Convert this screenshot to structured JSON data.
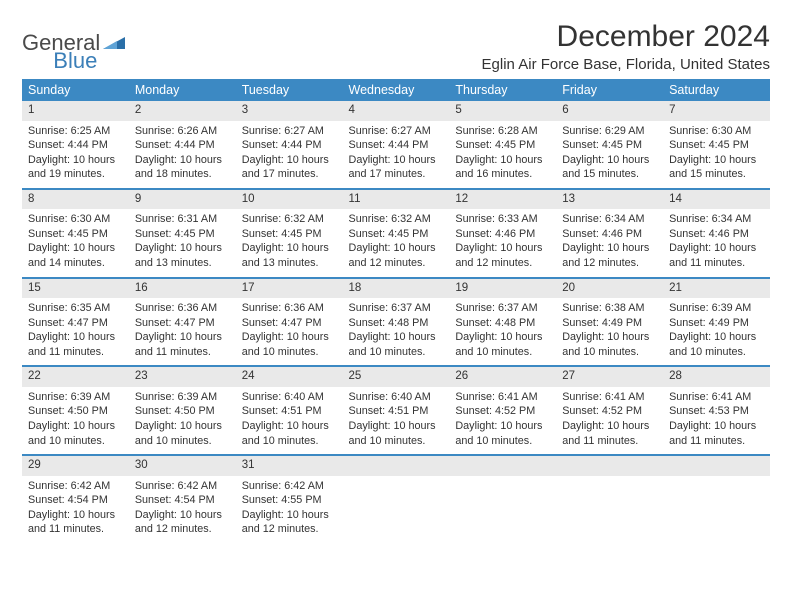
{
  "logo": {
    "word1": "General",
    "word2": "Blue",
    "color1": "#4a4a4a",
    "color2": "#3b7fb8"
  },
  "title": "December 2024",
  "subtitle": "Eglin Air Force Base, Florida, United States",
  "headers": [
    "Sunday",
    "Monday",
    "Tuesday",
    "Wednesday",
    "Thursday",
    "Friday",
    "Saturday"
  ],
  "colors": {
    "header_bg": "#3c89c3",
    "header_fg": "#ffffff",
    "rule": "#3c89c3",
    "daybar_bg": "#e9e9e9",
    "empty_bg": "#f1f1f1",
    "text": "#333333"
  },
  "labels": {
    "sunrise": "Sunrise:",
    "sunset": "Sunset:",
    "daylight": "Daylight:"
  },
  "days": [
    {
      "n": "1",
      "sr": "6:25 AM",
      "ss": "4:44 PM",
      "dl": "10 hours and 19 minutes."
    },
    {
      "n": "2",
      "sr": "6:26 AM",
      "ss": "4:44 PM",
      "dl": "10 hours and 18 minutes."
    },
    {
      "n": "3",
      "sr": "6:27 AM",
      "ss": "4:44 PM",
      "dl": "10 hours and 17 minutes."
    },
    {
      "n": "4",
      "sr": "6:27 AM",
      "ss": "4:44 PM",
      "dl": "10 hours and 17 minutes."
    },
    {
      "n": "5",
      "sr": "6:28 AM",
      "ss": "4:45 PM",
      "dl": "10 hours and 16 minutes."
    },
    {
      "n": "6",
      "sr": "6:29 AM",
      "ss": "4:45 PM",
      "dl": "10 hours and 15 minutes."
    },
    {
      "n": "7",
      "sr": "6:30 AM",
      "ss": "4:45 PM",
      "dl": "10 hours and 15 minutes."
    },
    {
      "n": "8",
      "sr": "6:30 AM",
      "ss": "4:45 PM",
      "dl": "10 hours and 14 minutes."
    },
    {
      "n": "9",
      "sr": "6:31 AM",
      "ss": "4:45 PM",
      "dl": "10 hours and 13 minutes."
    },
    {
      "n": "10",
      "sr": "6:32 AM",
      "ss": "4:45 PM",
      "dl": "10 hours and 13 minutes."
    },
    {
      "n": "11",
      "sr": "6:32 AM",
      "ss": "4:45 PM",
      "dl": "10 hours and 12 minutes."
    },
    {
      "n": "12",
      "sr": "6:33 AM",
      "ss": "4:46 PM",
      "dl": "10 hours and 12 minutes."
    },
    {
      "n": "13",
      "sr": "6:34 AM",
      "ss": "4:46 PM",
      "dl": "10 hours and 12 minutes."
    },
    {
      "n": "14",
      "sr": "6:34 AM",
      "ss": "4:46 PM",
      "dl": "10 hours and 11 minutes."
    },
    {
      "n": "15",
      "sr": "6:35 AM",
      "ss": "4:47 PM",
      "dl": "10 hours and 11 minutes."
    },
    {
      "n": "16",
      "sr": "6:36 AM",
      "ss": "4:47 PM",
      "dl": "10 hours and 11 minutes."
    },
    {
      "n": "17",
      "sr": "6:36 AM",
      "ss": "4:47 PM",
      "dl": "10 hours and 10 minutes."
    },
    {
      "n": "18",
      "sr": "6:37 AM",
      "ss": "4:48 PM",
      "dl": "10 hours and 10 minutes."
    },
    {
      "n": "19",
      "sr": "6:37 AM",
      "ss": "4:48 PM",
      "dl": "10 hours and 10 minutes."
    },
    {
      "n": "20",
      "sr": "6:38 AM",
      "ss": "4:49 PM",
      "dl": "10 hours and 10 minutes."
    },
    {
      "n": "21",
      "sr": "6:39 AM",
      "ss": "4:49 PM",
      "dl": "10 hours and 10 minutes."
    },
    {
      "n": "22",
      "sr": "6:39 AM",
      "ss": "4:50 PM",
      "dl": "10 hours and 10 minutes."
    },
    {
      "n": "23",
      "sr": "6:39 AM",
      "ss": "4:50 PM",
      "dl": "10 hours and 10 minutes."
    },
    {
      "n": "24",
      "sr": "6:40 AM",
      "ss": "4:51 PM",
      "dl": "10 hours and 10 minutes."
    },
    {
      "n": "25",
      "sr": "6:40 AM",
      "ss": "4:51 PM",
      "dl": "10 hours and 10 minutes."
    },
    {
      "n": "26",
      "sr": "6:41 AM",
      "ss": "4:52 PM",
      "dl": "10 hours and 10 minutes."
    },
    {
      "n": "27",
      "sr": "6:41 AM",
      "ss": "4:52 PM",
      "dl": "10 hours and 11 minutes."
    },
    {
      "n": "28",
      "sr": "6:41 AM",
      "ss": "4:53 PM",
      "dl": "10 hours and 11 minutes."
    },
    {
      "n": "29",
      "sr": "6:42 AM",
      "ss": "4:54 PM",
      "dl": "10 hours and 11 minutes."
    },
    {
      "n": "30",
      "sr": "6:42 AM",
      "ss": "4:54 PM",
      "dl": "10 hours and 12 minutes."
    },
    {
      "n": "31",
      "sr": "6:42 AM",
      "ss": "4:55 PM",
      "dl": "10 hours and 12 minutes."
    }
  ],
  "grid": {
    "rows": 5,
    "cols": 7,
    "start_offset": 0,
    "total_cells": 35
  }
}
